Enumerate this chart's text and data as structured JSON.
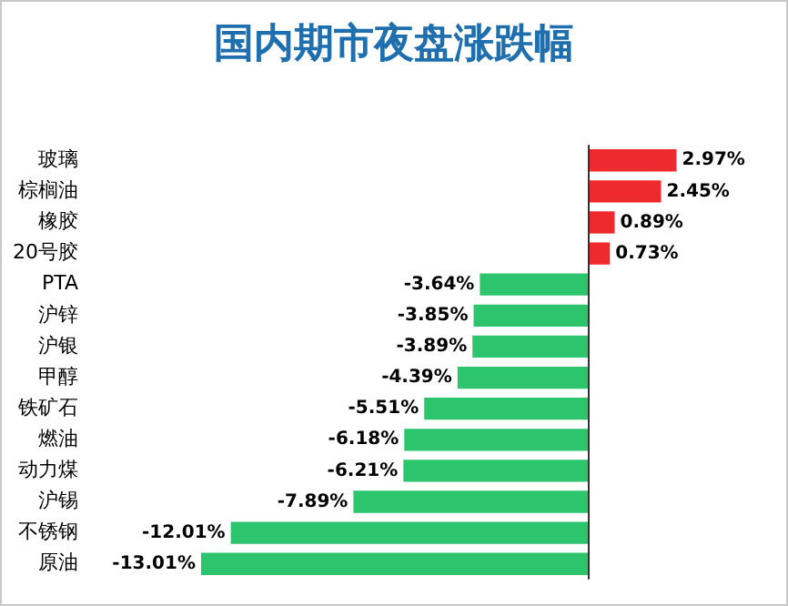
{
  "chart_data": {
    "type": "bar",
    "orientation": "horizontal",
    "title": "国内期市夜盘涨跌幅",
    "categories": [
      "玻璃",
      "棕榈油",
      "橡胶",
      "20号胶",
      "PTA",
      "沪锌",
      "沪银",
      "甲醇",
      "铁矿石",
      "燃油",
      "动力煤",
      "沪锡",
      "不锈钢",
      "原油"
    ],
    "values": [
      2.97,
      2.45,
      0.89,
      0.73,
      -3.64,
      -3.85,
      -3.89,
      -4.39,
      -5.51,
      -6.18,
      -6.21,
      -7.89,
      -12.01,
      -13.01
    ],
    "colors": [
      "#ee2a2e",
      "#ee2a2e",
      "#ee2a2e",
      "#ee2a2e",
      "#2dc46e",
      "#2dc46e",
      "#2dc46e",
      "#2dc46e",
      "#2dc46e",
      "#2dc46e",
      "#2dc46e",
      "#2dc46e",
      "#2dc46e",
      "#2dc46e"
    ],
    "value_labels": [
      "2.97%",
      "2.45%",
      "0.89%",
      "0.73%",
      "-3.64%",
      "-3.85%",
      "-3.89%",
      "-4.39%",
      "-5.51%",
      "-6.18%",
      "-6.21%",
      "-7.89%",
      "-12.01%",
      "-13.01%"
    ],
    "grid": false,
    "legend": false,
    "tick_labels": "y"
  }
}
